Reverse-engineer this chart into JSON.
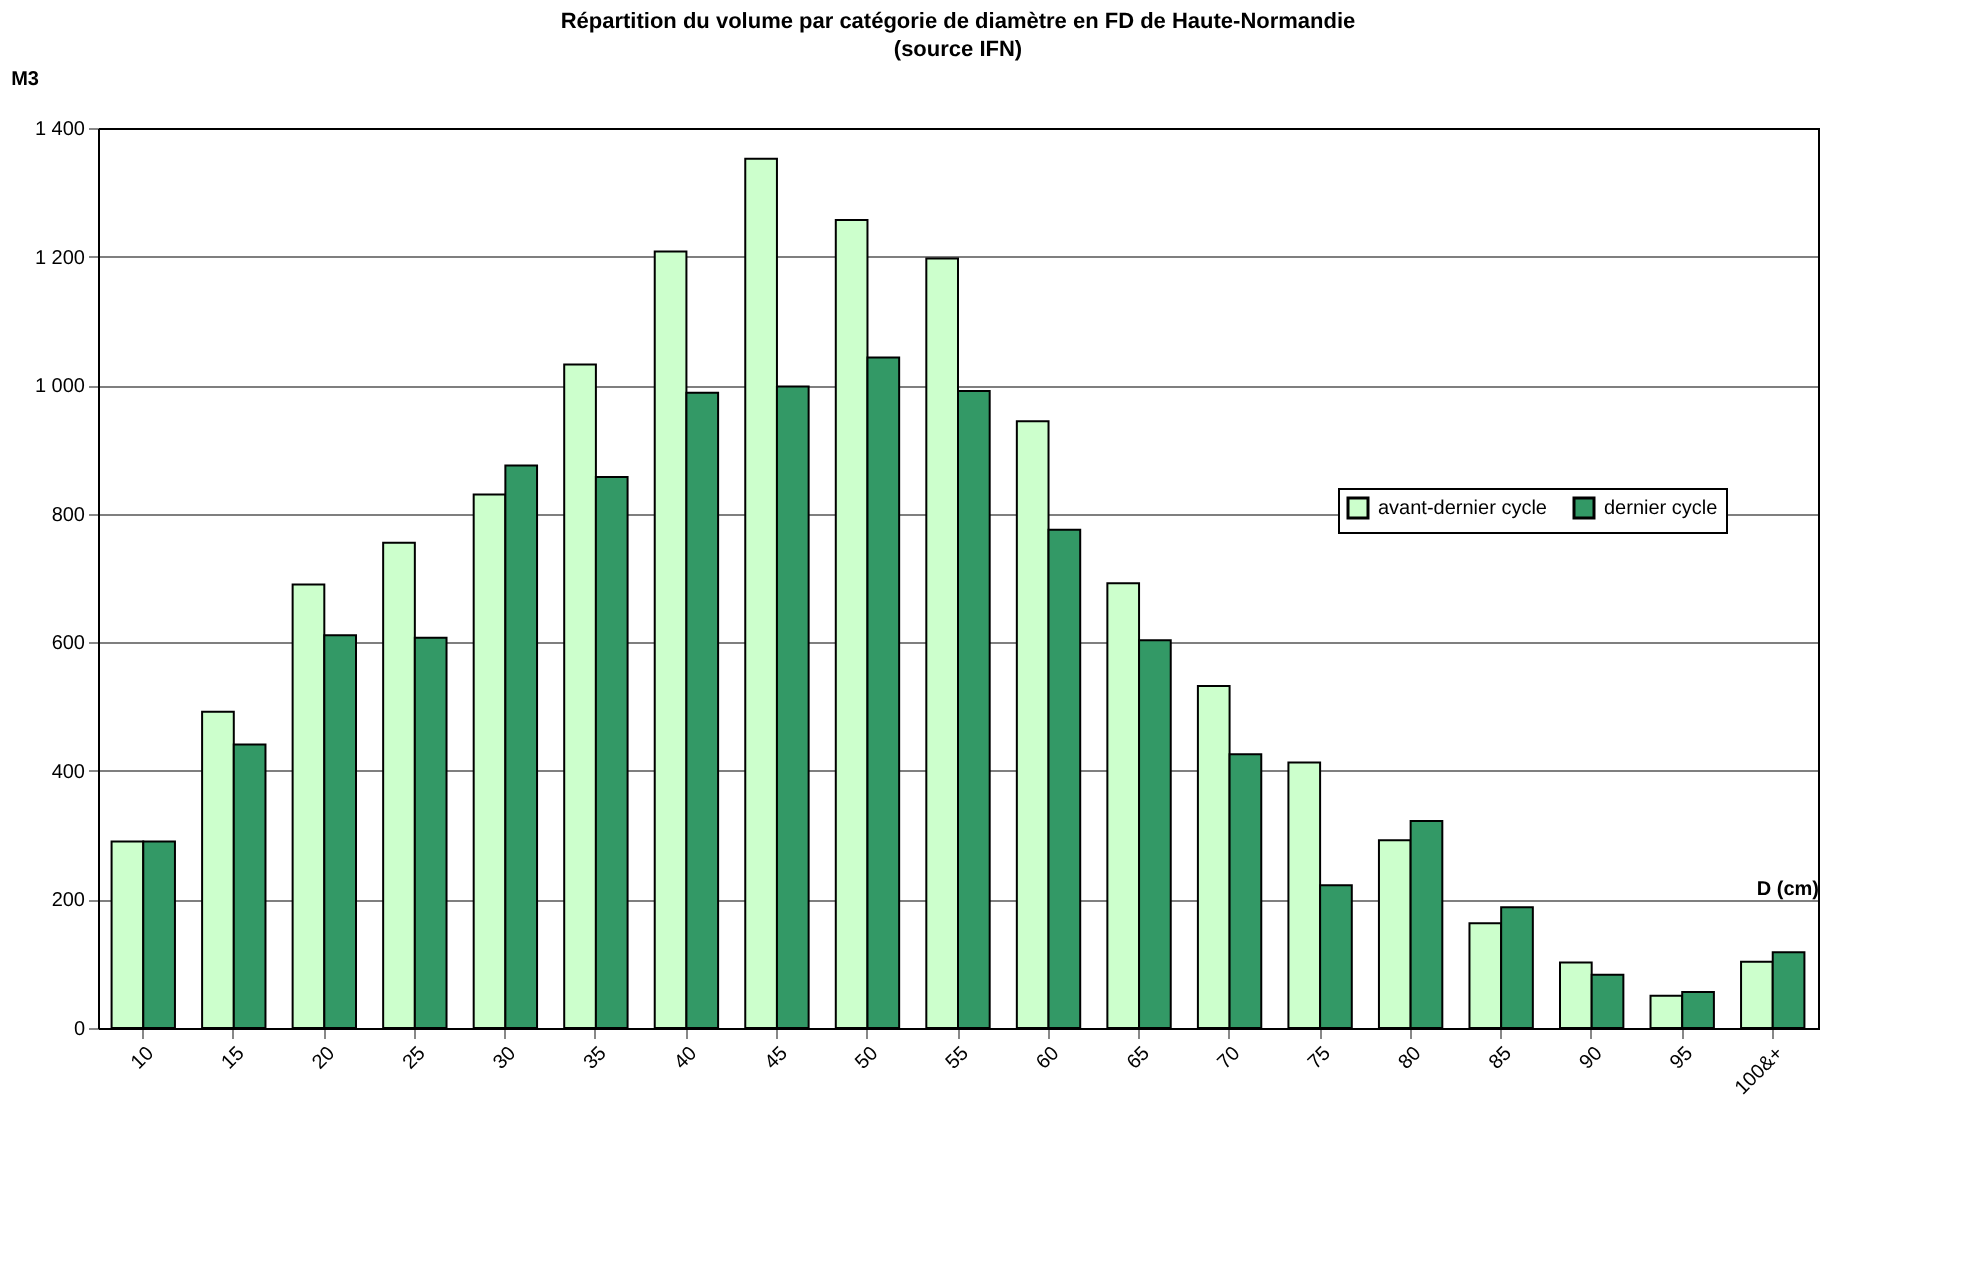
{
  "chart_data": {
    "type": "bar",
    "title": "Répartition du volume par catégorie de diamètre en FD de Haute-Normandie",
    "subtitle": "(source IFN)",
    "ylabel": "M3",
    "xlabel": "D (cm)",
    "categories": [
      "10",
      "15",
      "20",
      "25",
      "30",
      "35",
      "40",
      "45",
      "50",
      "55",
      "60",
      "65",
      "70",
      "75",
      "80",
      "85",
      "90",
      "95",
      "100&+"
    ],
    "series": [
      {
        "name": "avant-dernier cycle",
        "color": "#ccffcc",
        "values": [
          290,
          492,
          690,
          755,
          830,
          1032,
          1208,
          1352,
          1257,
          1197,
          944,
          692,
          532,
          413,
          292,
          163,
          102,
          50,
          103
        ]
      },
      {
        "name": "dernier cycle",
        "color": "#339966",
        "values": [
          290,
          441,
          611,
          607,
          875,
          857,
          988,
          998,
          1043,
          991,
          775,
          603,
          426,
          222,
          322,
          188,
          83,
          56,
          118
        ]
      }
    ],
    "ylim": [
      0,
      1400
    ],
    "yticks": [
      0,
      200,
      400,
      600,
      800,
      {
        "value": 1000,
        "label": "1 000"
      },
      {
        "value": 1200,
        "label": "1 200"
      },
      {
        "value": 1400,
        "label": "1 400"
      }
    ],
    "grid": "y",
    "legend": "right"
  }
}
